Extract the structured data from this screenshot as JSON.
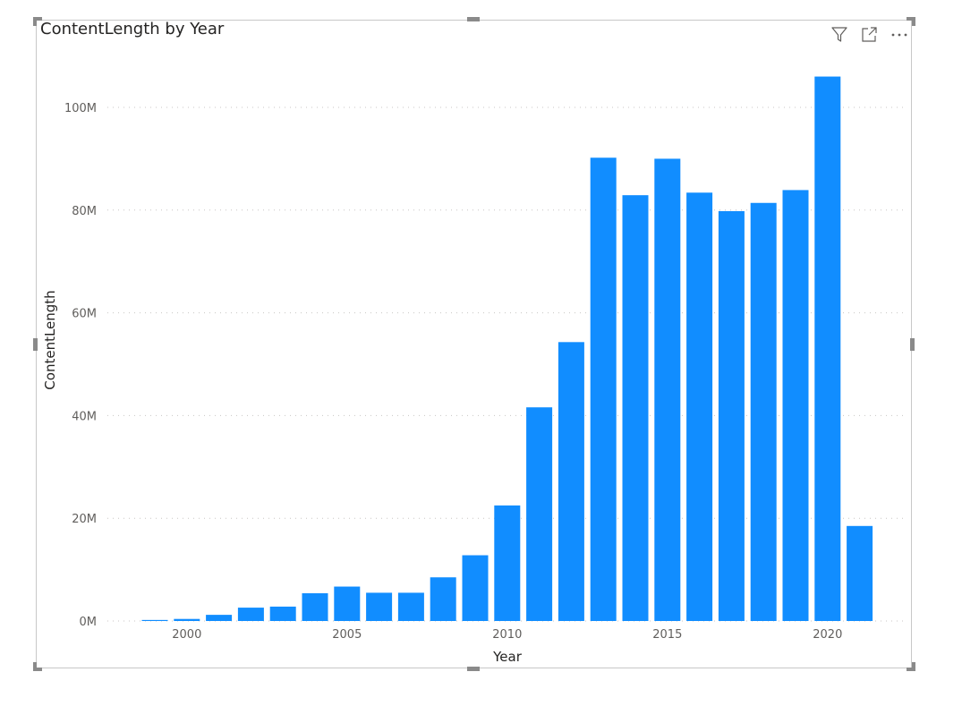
{
  "visual": {
    "title": "ContentLength by Year",
    "header_icons": [
      "filter-icon",
      "focus-mode-icon",
      "more-options-icon"
    ]
  },
  "chart_data": {
    "type": "bar",
    "title": "ContentLength by Year",
    "xlabel": "Year",
    "ylabel": "ContentLength",
    "x_ticks": [
      "2000",
      "2005",
      "2010",
      "2015",
      "2020"
    ],
    "y_ticks": [
      "0M",
      "20M",
      "40M",
      "60M",
      "80M",
      "100M"
    ],
    "ylim": [
      0,
      100000000
    ],
    "grid": "horizontal dotted",
    "color": "#118DFF",
    "categories": [
      1999,
      2000,
      2001,
      2002,
      2003,
      2004,
      2005,
      2006,
      2007,
      2008,
      2009,
      2010,
      2011,
      2012,
      2013,
      2014,
      2015,
      2016,
      2017,
      2018,
      2019,
      2020,
      2021
    ],
    "values": [
      200000,
      400000,
      1200000,
      2600000,
      2800000,
      5400000,
      6700000,
      5500000,
      5500000,
      8500000,
      12800000,
      22500000,
      41600000,
      54300000,
      90200000,
      82900000,
      90000000,
      83400000,
      79800000,
      81400000,
      83900000,
      106000000,
      18500000
    ]
  }
}
